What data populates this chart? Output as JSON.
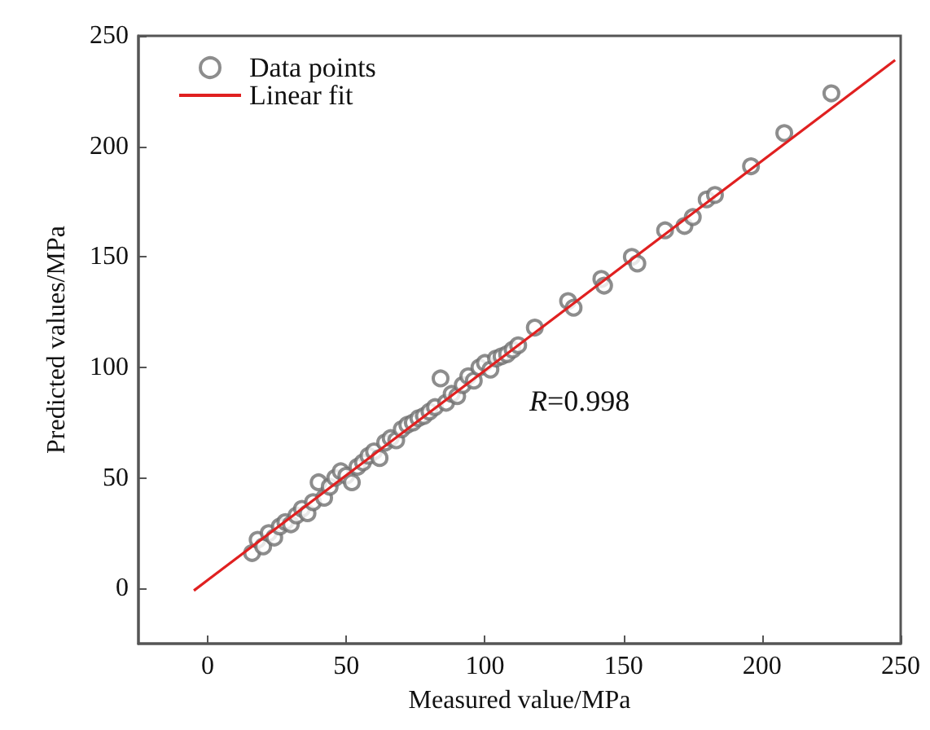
{
  "chart_data": {
    "type": "scatter",
    "xlabel": "Measured value/MPa",
    "ylabel": "Predicted values/MPa",
    "xlim": [
      -25,
      250
    ],
    "ylim": [
      -25,
      250
    ],
    "xticks": [
      0,
      50,
      100,
      150,
      200,
      250
    ],
    "yticks": [
      0,
      50,
      100,
      150,
      200,
      250
    ],
    "grid": false,
    "legend": "top left",
    "marker": "circle",
    "annotations": [
      "R=0.998"
    ],
    "series": [
      {
        "name": "Data points",
        "color": "#707070",
        "x": [
          16,
          18,
          20,
          22,
          24,
          26,
          28,
          30,
          32,
          34,
          36,
          38,
          40,
          42,
          44,
          46,
          48,
          50,
          52,
          54,
          56,
          58,
          60,
          62,
          64,
          66,
          68,
          70,
          72,
          74,
          76,
          78,
          80,
          82,
          84,
          86,
          88,
          90,
          92,
          94,
          96,
          98,
          100,
          102,
          104,
          106,
          108,
          110,
          112,
          118,
          130,
          132,
          142,
          143,
          153,
          155,
          165,
          172,
          175,
          180,
          183,
          196,
          208,
          225
        ],
        "values": [
          16,
          22,
          19,
          25,
          23,
          28,
          30,
          29,
          33,
          36,
          34,
          39,
          48,
          41,
          46,
          50,
          53,
          51,
          48,
          55,
          57,
          60,
          62,
          59,
          66,
          68,
          67,
          72,
          74,
          75,
          77,
          78,
          80,
          82,
          95,
          84,
          88,
          87,
          92,
          96,
          94,
          100,
          102,
          99,
          104,
          105,
          106,
          108,
          110,
          118,
          130,
          127,
          140,
          137,
          150,
          147,
          162,
          164,
          168,
          176,
          178,
          191,
          206,
          224
        ]
      },
      {
        "name": "Linear fit",
        "type": "line",
        "color": "#e02020",
        "line_style": "solid",
        "marker": "none",
        "x": [
          -5,
          248
        ],
        "values": [
          -1,
          239
        ]
      }
    ]
  }
}
